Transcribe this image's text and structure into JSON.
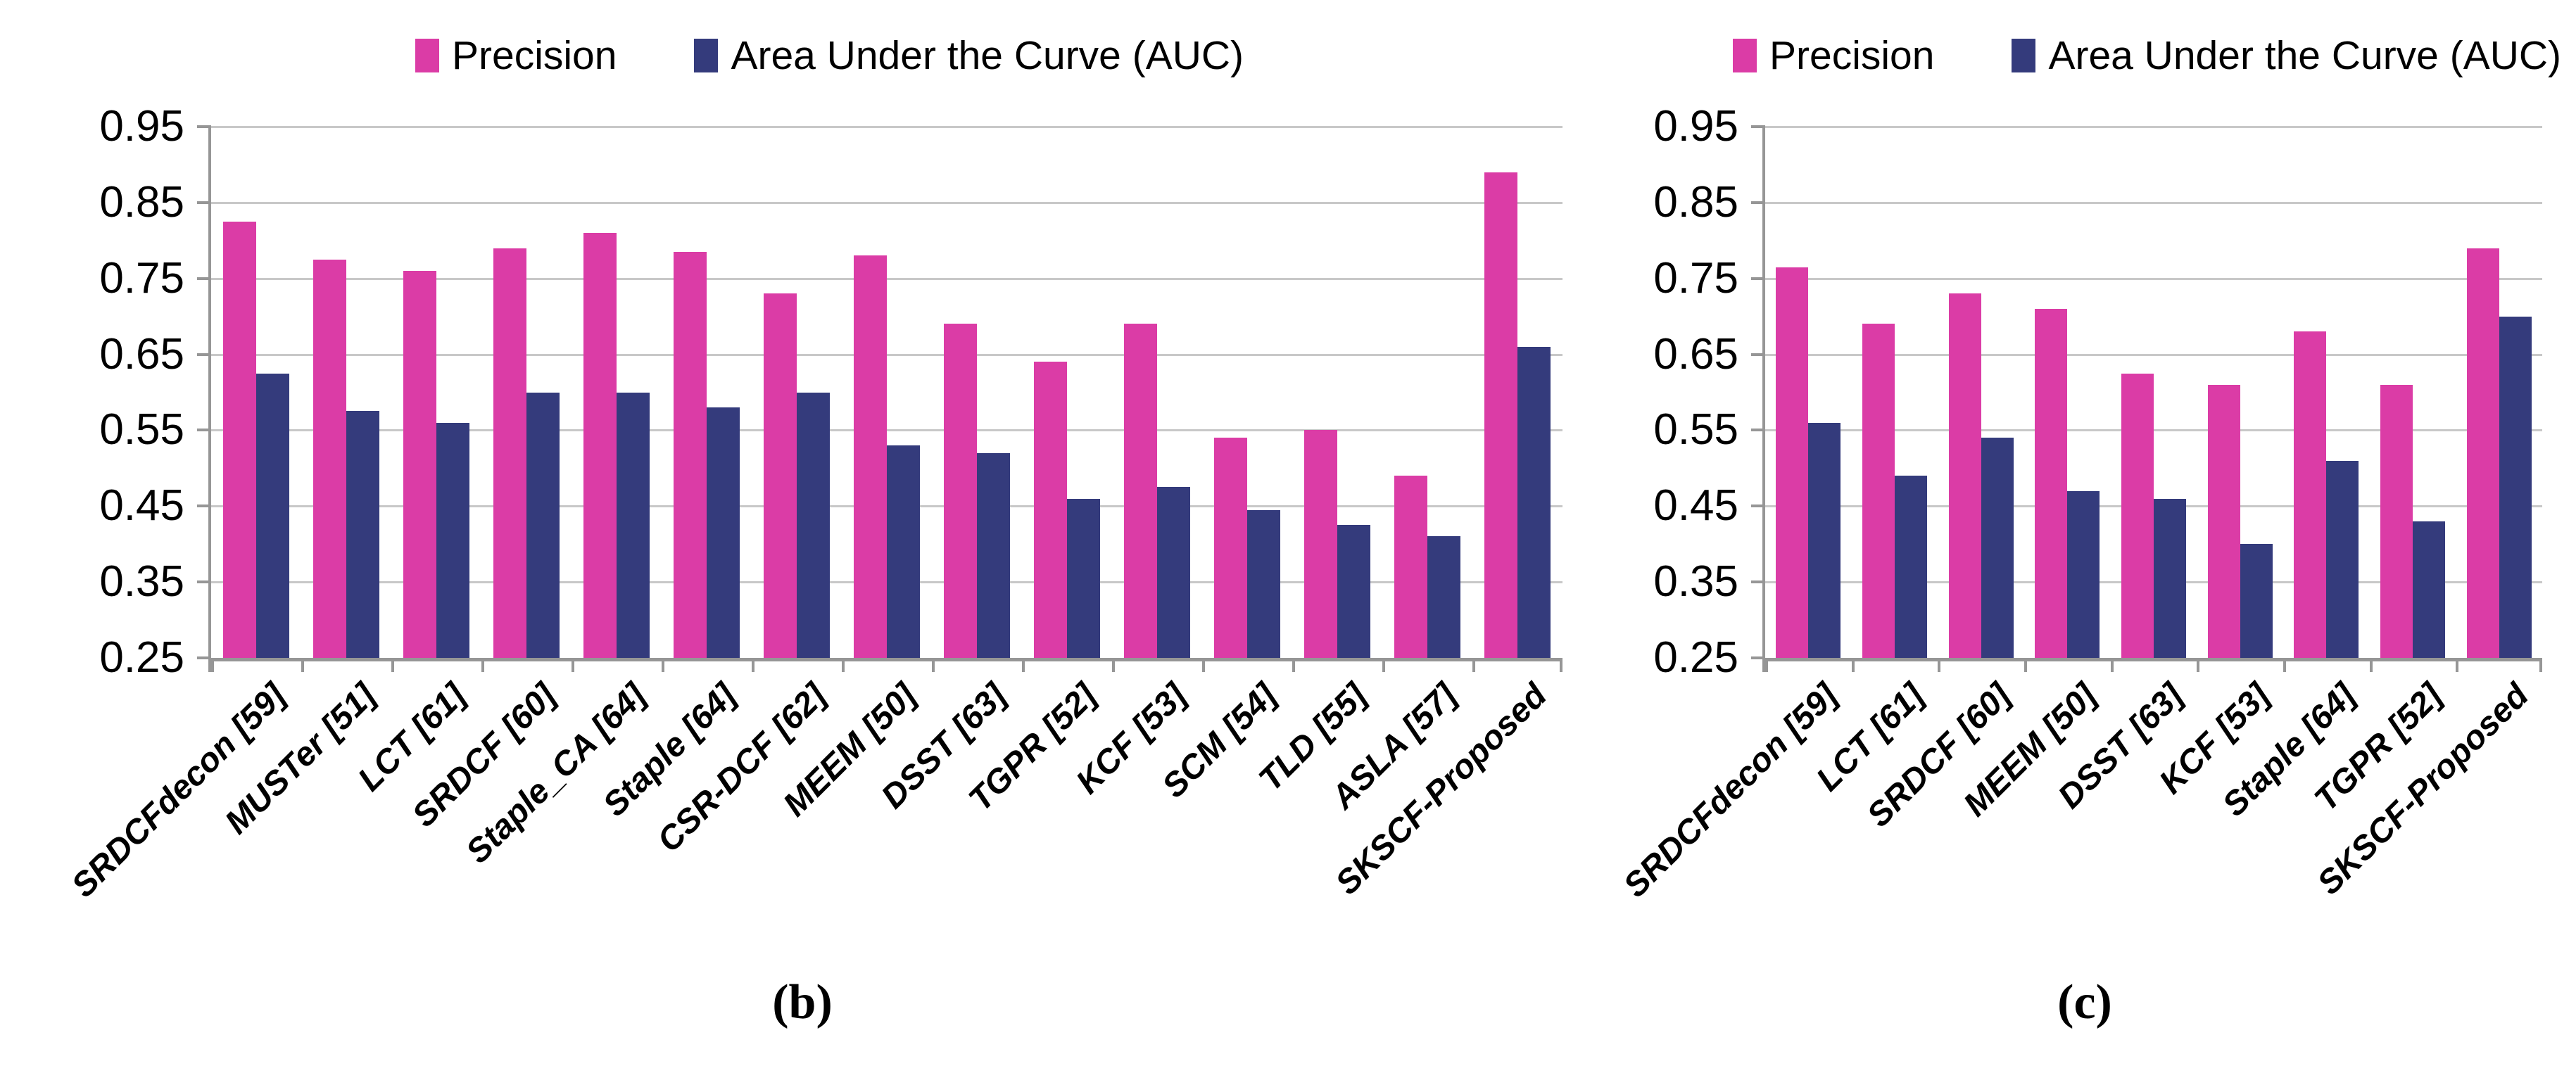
{
  "figure": {
    "captions": {
      "b": "(b)",
      "c": "(c)"
    }
  },
  "colors": {
    "precision": "#db3ca6",
    "auc": "#343b7c",
    "gridline": "#c8c8c8",
    "axis": "#969696",
    "text": "#000000"
  },
  "chart_data": [
    {
      "id": "b",
      "type": "bar",
      "title": "",
      "caption": "(b)",
      "legend_position": "top",
      "grid": true,
      "xlabel": "",
      "ylabel": "",
      "ylim": [
        0.25,
        0.95
      ],
      "yticks": [
        0.95,
        0.85,
        0.75,
        0.65,
        0.55,
        0.45,
        0.35,
        0.25
      ],
      "categories": [
        "SRDCFdecon [59]",
        "MUSTer [51]",
        "LCT [61]",
        "SRDCF [60]",
        "Staple_CA [64]",
        "Staple [64]",
        "CSR-DCF [62]",
        "MEEM [50]",
        "DSST [63]",
        "TGPR [52]",
        "KCF [53]",
        "SCM [54]",
        "TLD [55]",
        "ASLA [57]",
        "SKSCF-Proposed"
      ],
      "series": [
        {
          "name": "Precision",
          "color": "#db3ca6",
          "values": [
            0.825,
            0.775,
            0.76,
            0.79,
            0.81,
            0.785,
            0.73,
            0.78,
            0.69,
            0.64,
            0.69,
            0.54,
            0.55,
            0.49,
            0.89
          ]
        },
        {
          "name": "Area Under the Curve (AUC)",
          "color": "#343b7c",
          "values": [
            0.625,
            0.575,
            0.56,
            0.6,
            0.6,
            0.58,
            0.6,
            0.53,
            0.52,
            0.46,
            0.475,
            0.445,
            0.425,
            0.41,
            0.66
          ]
        }
      ]
    },
    {
      "id": "c",
      "type": "bar",
      "title": "",
      "caption": "(c)",
      "legend_position": "top",
      "grid": true,
      "xlabel": "",
      "ylabel": "",
      "ylim": [
        0.25,
        0.95
      ],
      "yticks": [
        0.95,
        0.85,
        0.75,
        0.65,
        0.55,
        0.45,
        0.35,
        0.25
      ],
      "categories": [
        "SRDCFdecon [59]",
        "LCT [61]",
        "SRDCF [60]",
        "MEEM [50]",
        "DSST [63]",
        "KCF [53]",
        "Staple [64]",
        "TGPR [52]",
        "SKSCF-Proposed"
      ],
      "series": [
        {
          "name": "Precision",
          "color": "#db3ca6",
          "values": [
            0.765,
            0.69,
            0.73,
            0.71,
            0.625,
            0.61,
            0.68,
            0.61,
            0.79
          ]
        },
        {
          "name": "Area Under the Curve (AUC)",
          "color": "#343b7c",
          "values": [
            0.56,
            0.49,
            0.54,
            0.47,
            0.46,
            0.4,
            0.51,
            0.43,
            0.7
          ]
        }
      ]
    }
  ]
}
